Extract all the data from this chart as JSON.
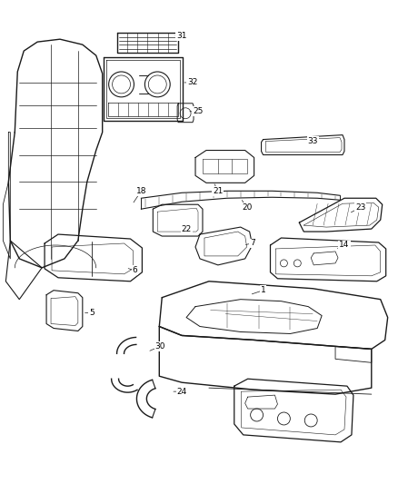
{
  "background_color": "#ffffff",
  "line_color": "#1a1a1a",
  "label_color": "#000000",
  "figsize": [
    4.38,
    5.33
  ],
  "dpi": 100
}
